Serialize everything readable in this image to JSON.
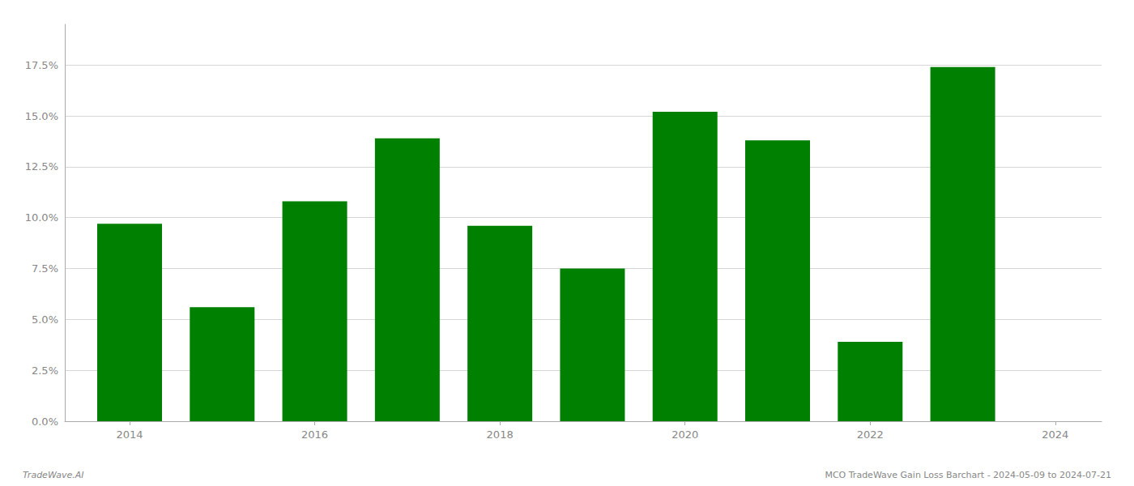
{
  "chart_data": {
    "type": "bar",
    "x": [
      2014,
      2015,
      2016,
      2017,
      2018,
      2019,
      2020,
      2021,
      2022,
      2023
    ],
    "values": [
      0.097,
      0.056,
      0.108,
      0.139,
      0.096,
      0.075,
      0.152,
      0.138,
      0.039,
      0.174
    ],
    "color": "#008000",
    "xlim": [
      2013.3,
      2024.5
    ],
    "xticks": [
      2014,
      2016,
      2018,
      2020,
      2022,
      2024
    ],
    "ylim": [
      0,
      0.195
    ],
    "yticks": [
      {
        "value": 0.0,
        "label": "0.0%"
      },
      {
        "value": 0.025,
        "label": "2.5%"
      },
      {
        "value": 0.05,
        "label": "5.0%"
      },
      {
        "value": 0.075,
        "label": "7.5%"
      },
      {
        "value": 0.1,
        "label": "10.0%"
      },
      {
        "value": 0.125,
        "label": "12.5%"
      },
      {
        "value": 0.15,
        "label": "15.0%"
      },
      {
        "value": 0.175,
        "label": "17.5%"
      }
    ],
    "grid": true,
    "annotations": [
      "TradeWave.AI",
      "MCO TradeWave Gain Loss Barchart - 2024-05-09 to 2024-07-21"
    ]
  }
}
